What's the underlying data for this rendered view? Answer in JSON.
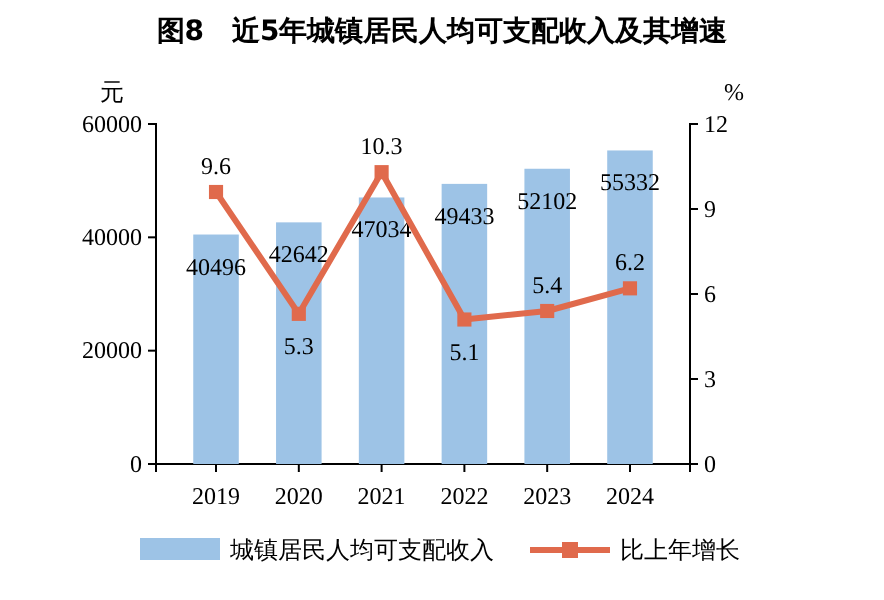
{
  "chart_data": {
    "type": "bar",
    "title": "图8　近5年城镇居民人均可支配收入及其增速",
    "ylabel": "元",
    "y2label": "%",
    "categories": [
      "2019",
      "2020",
      "2021",
      "2022",
      "2023",
      "2024"
    ],
    "series": [
      {
        "name": "城镇居民人均可支配收入",
        "color": "#9dc3e6",
        "values": [
          40496,
          42642,
          47034,
          49433,
          52102,
          55332
        ]
      },
      {
        "name": "比上年增长",
        "type": "line",
        "axis": "y2",
        "color": "#e06a4c",
        "marker": "square",
        "values": [
          9.6,
          5.3,
          10.3,
          5.1,
          5.4,
          6.2
        ]
      }
    ],
    "ylim": [
      0,
      60000
    ],
    "yticks": [
      0,
      20000,
      40000,
      60000
    ],
    "y2lim": [
      0,
      12
    ],
    "y2ticks": [
      0,
      3,
      6,
      9,
      12
    ],
    "data_labels": true,
    "legend": "bottom",
    "grid": false
  }
}
